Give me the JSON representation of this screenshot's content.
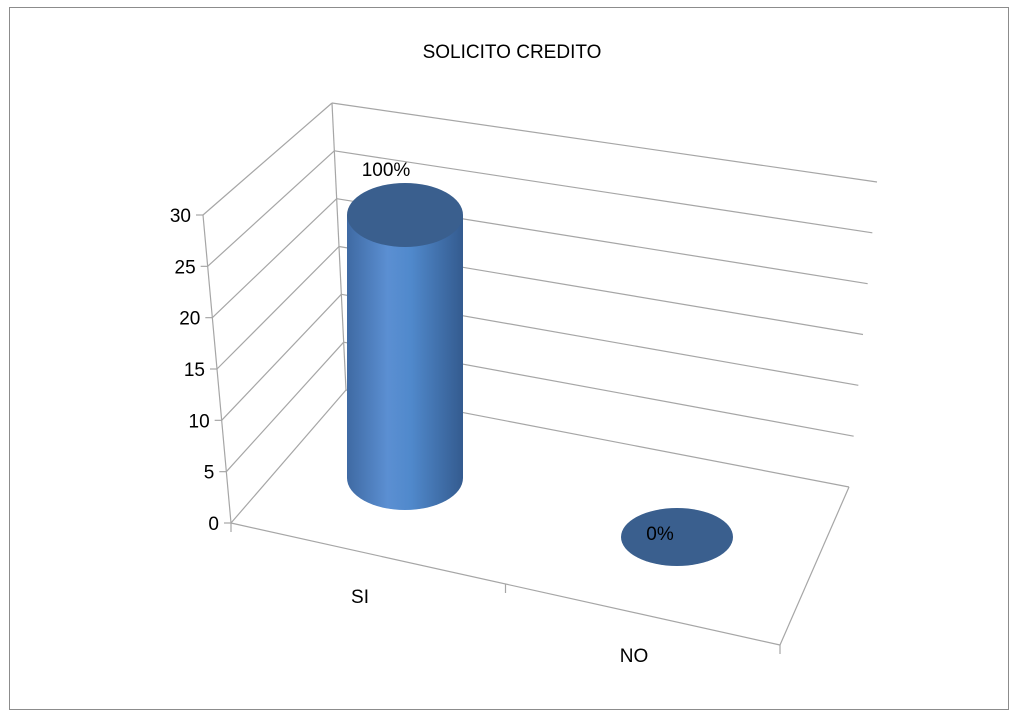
{
  "chart_data": {
    "type": "bar",
    "style": "3d-cylinder",
    "title": "SOLICITO CREDITO",
    "categories": [
      "SI",
      "NO"
    ],
    "values": [
      28,
      0
    ],
    "data_labels": [
      "100%",
      "0%"
    ],
    "ylim": [
      0,
      30
    ],
    "yticks": [
      0,
      5,
      10,
      15,
      20,
      25,
      30
    ],
    "grid": true,
    "legend": "none",
    "colors": {
      "bar": "#4f81bd",
      "bar_top": "#3a5f8e",
      "grid": "#a6a6a6"
    }
  }
}
